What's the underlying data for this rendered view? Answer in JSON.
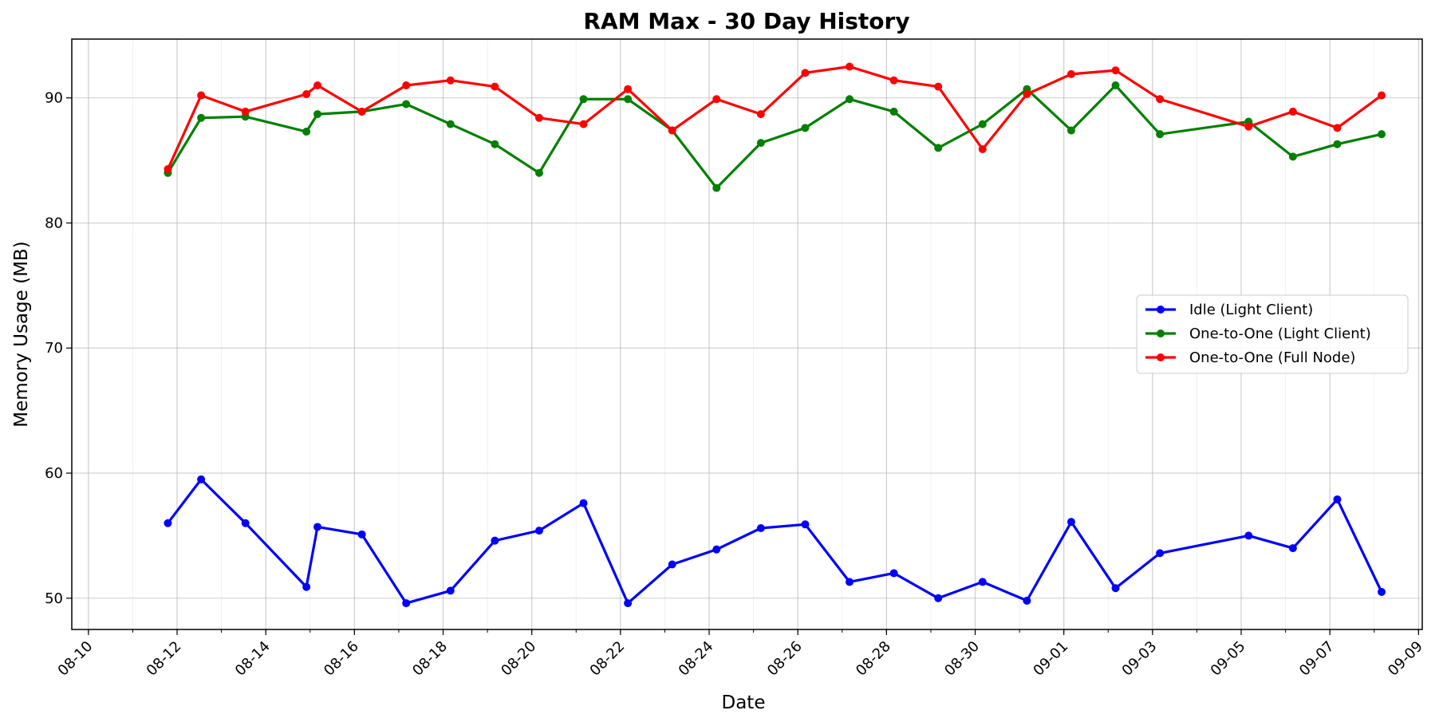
{
  "chart_data": {
    "type": "line",
    "title": "RAM Max - 30 Day History",
    "xlabel": "Date",
    "ylabel": "Memory Usage (MB)",
    "xlim": [
      "2025-08-09T15:00",
      "2025-09-09T02:00"
    ],
    "ylim": [
      47.5,
      94.7
    ],
    "x_ticks": [
      "2025-08-10",
      "2025-08-12",
      "2025-08-14",
      "2025-08-16",
      "2025-08-18",
      "2025-08-20",
      "2025-08-22",
      "2025-08-24",
      "2025-08-26",
      "2025-08-28",
      "2025-08-30",
      "2025-09-01",
      "2025-09-03",
      "2025-09-05",
      "2025-09-07",
      "2025-09-09"
    ],
    "x_tick_labels": [
      "08-10",
      "08-12",
      "08-14",
      "08-16",
      "08-18",
      "08-20",
      "08-22",
      "08-24",
      "08-26",
      "08-28",
      "08-30",
      "09-01",
      "09-03",
      "09-05",
      "09-07",
      "09-09"
    ],
    "y_ticks": [
      50,
      60,
      70,
      80,
      90
    ],
    "grid": true,
    "minor_x_grid": "daily",
    "legend_position": "center-right",
    "x": [
      "2025-08-11T19:00",
      "2025-08-12T13:00",
      "2025-08-13T13:00",
      "2025-08-14T22:00",
      "2025-08-15T04:00",
      "2025-08-16T04:00",
      "2025-08-17T04:00",
      "2025-08-18T04:00",
      "2025-08-19T04:00",
      "2025-08-20T04:00",
      "2025-08-21T04:00",
      "2025-08-22T04:00",
      "2025-08-23T04:00",
      "2025-08-24T04:00",
      "2025-08-25T04:00",
      "2025-08-26T04:00",
      "2025-08-27T04:00",
      "2025-08-28T04:00",
      "2025-08-29T04:00",
      "2025-08-30T04:00",
      "2025-08-31T04:00",
      "2025-09-01T04:00",
      "2025-09-02T04:00",
      "2025-09-03T04:00",
      "2025-09-05T04:00",
      "2025-09-06T04:00",
      "2025-09-07T04:00",
      "2025-09-08T04:00"
    ],
    "series": [
      {
        "name": "Idle (Light Client)",
        "color": "#0000ff",
        "values": [
          56.0,
          59.5,
          56.0,
          50.9,
          55.7,
          55.1,
          49.6,
          50.6,
          54.6,
          55.4,
          57.6,
          49.6,
          52.7,
          53.9,
          55.6,
          55.9,
          51.3,
          52.0,
          50.0,
          51.3,
          49.8,
          56.1,
          50.8,
          53.6,
          55.0,
          54.0,
          57.9,
          50.5
        ]
      },
      {
        "name": "One-to-One (Light Client)",
        "color": "#008000",
        "values": [
          84.0,
          88.4,
          88.5,
          87.3,
          88.7,
          88.9,
          89.5,
          87.9,
          86.3,
          84.0,
          89.9,
          89.9,
          87.4,
          82.8,
          86.4,
          87.6,
          89.9,
          88.9,
          86.0,
          87.9,
          90.7,
          87.4,
          91.0,
          87.1,
          88.1,
          85.3,
          86.3,
          87.1
        ]
      },
      {
        "name": "One-to-One (Full Node)",
        "color": "#ff0000",
        "values": [
          84.3,
          90.2,
          88.9,
          90.3,
          91.0,
          88.9,
          91.0,
          91.4,
          90.9,
          88.4,
          87.9,
          90.7,
          87.4,
          89.9,
          88.7,
          92.0,
          92.5,
          91.4,
          90.9,
          85.9,
          90.3,
          91.9,
          92.2,
          89.9,
          87.7,
          88.9,
          87.6,
          90.2
        ]
      }
    ]
  }
}
